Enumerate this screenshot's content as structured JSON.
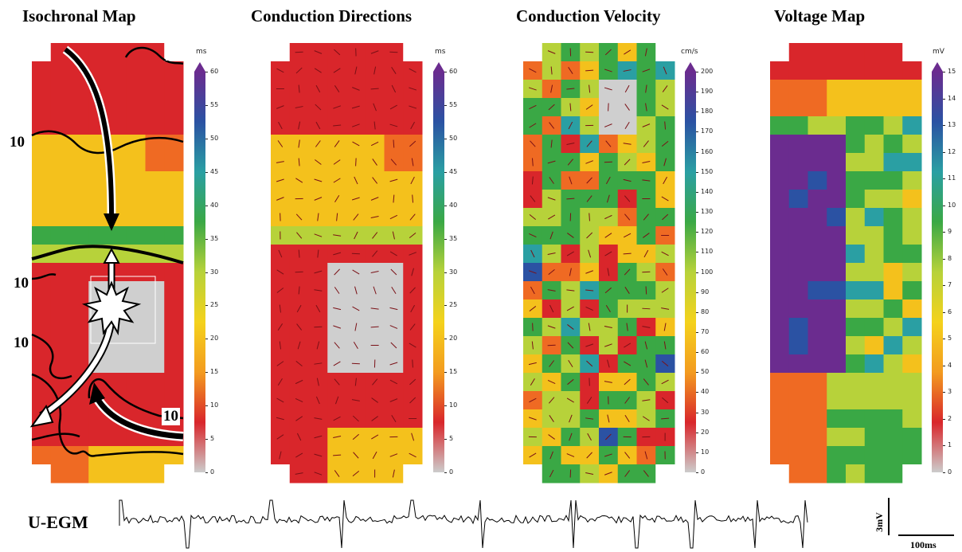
{
  "panels": {
    "isochronal": {
      "title": "Isochronal Map",
      "unit": "ms",
      "ticks": [
        "0",
        "5",
        "10",
        "15",
        "20",
        "25",
        "30",
        "35",
        "40",
        "45",
        "50",
        "55",
        "60"
      ]
    },
    "directions": {
      "title": "Conduction Directions",
      "unit": "ms",
      "ticks": [
        "0",
        "5",
        "10",
        "15",
        "20",
        "25",
        "30",
        "35",
        "40",
        "45",
        "50",
        "55",
        "60"
      ]
    },
    "velocity": {
      "title": "Conduction Velocity",
      "unit": "cm/s",
      "ticks": [
        "0",
        "10",
        "20",
        "30",
        "40",
        "50",
        "60",
        "70",
        "80",
        "90",
        "100",
        "110",
        "120",
        "130",
        "140",
        "150",
        "160",
        "170",
        "180",
        "190",
        "200"
      ]
    },
    "voltage": {
      "title": "Voltage Map",
      "unit": "mV",
      "ticks": [
        "0",
        "1",
        "2",
        "3",
        "4",
        "5",
        "6",
        "7",
        "8",
        "9",
        "10",
        "11",
        "12",
        "13",
        "14",
        "15"
      ]
    }
  },
  "isochrone_labels": [
    "10",
    "10",
    "10",
    "10"
  ],
  "egm": {
    "label": "U-EGM",
    "scale_v": "3mV",
    "scale_t": "100ms"
  },
  "colors": {
    "red": "#d9262b",
    "orange": "#f39b1f",
    "yellow": "#f4d21c",
    "green": "#3aa845",
    "blue": "#2b52a3",
    "purple": "#6b2c8f",
    "gray": "#cccccc"
  }
}
